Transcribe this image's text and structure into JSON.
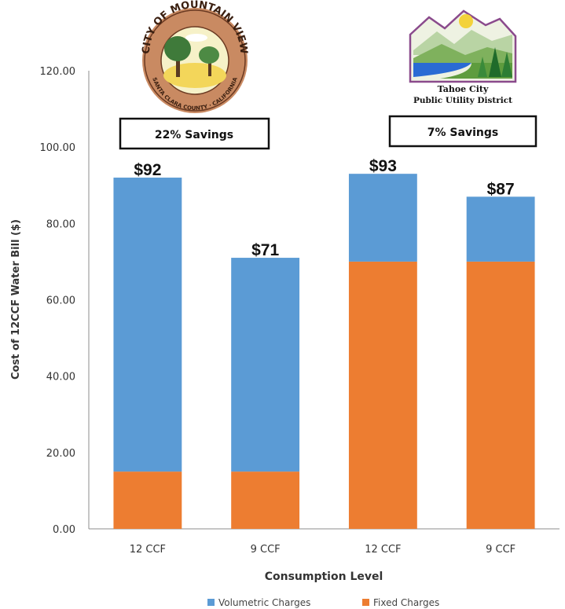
{
  "chart_data": {
    "type": "bar",
    "stacked": true,
    "categories": [
      "12 CCF",
      "9 CCF",
      "12 CCF",
      "9 CCF"
    ],
    "series": [
      {
        "name": "Fixed Charges",
        "color": "#ED7D31",
        "values": [
          15,
          15,
          70,
          70
        ]
      },
      {
        "name": "Volumetric Charges",
        "color": "#5B9BD5",
        "values": [
          77,
          56,
          23,
          17
        ]
      }
    ],
    "totals_labels": [
      "$92",
      "$71",
      "$93",
      "$87"
    ],
    "xlabel": "Consumption Level",
    "ylabel": "Cost of 12CCF Water Bill ($)",
    "ylim": [
      0,
      120
    ],
    "yticks": [
      "0.00",
      "20.00",
      "40.00",
      "60.00",
      "80.00",
      "100.00",
      "120.00"
    ],
    "legend": {
      "placement": "bottom",
      "entries": [
        "Volumetric Charges",
        "Fixed Charges"
      ]
    },
    "grid": false,
    "annotations": [
      {
        "text": "22% Savings",
        "group": "Mountain View"
      },
      {
        "text": "7% Savings",
        "group": "Tahoe City"
      }
    ]
  },
  "logos": {
    "mountain_view": {
      "top_text": "CITY OF MOUNTAIN VIEW",
      "bottom_text": "SANTA CLARA COUNTY · CALIFORNIA",
      "icon": "city-seal-icon"
    },
    "tahoe_city": {
      "line1": "Tahoe City",
      "line2": "Public Utility District",
      "icon": "mountain-lake-icon"
    }
  }
}
